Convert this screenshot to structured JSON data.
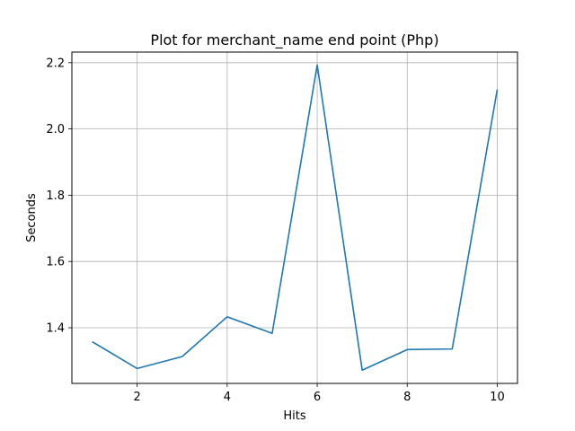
{
  "chart_data": {
    "type": "line",
    "title": "Plot for merchant_name end point (Php)",
    "xlabel": "Hits",
    "ylabel": "Seconds",
    "xlim": [
      0.55,
      10.45
    ],
    "ylim": [
      1.232,
      2.232
    ],
    "xticks": [
      2,
      4,
      6,
      8,
      10
    ],
    "xtick_labels": [
      "2",
      "4",
      "6",
      "8",
      "10"
    ],
    "yticks": [
      1.4,
      1.6,
      1.8,
      2.0,
      2.2
    ],
    "ytick_labels": [
      "1.4",
      "1.6",
      "1.8",
      "2.0",
      "2.2"
    ],
    "grid": true,
    "series": [
      {
        "color": "#1f77b4",
        "x": [
          1,
          2,
          3,
          4,
          5,
          6,
          7,
          8,
          9,
          10
        ],
        "y": [
          1.358,
          1.277,
          1.313,
          1.433,
          1.383,
          2.193,
          1.272,
          1.334,
          1.336,
          2.119
        ]
      }
    ]
  }
}
